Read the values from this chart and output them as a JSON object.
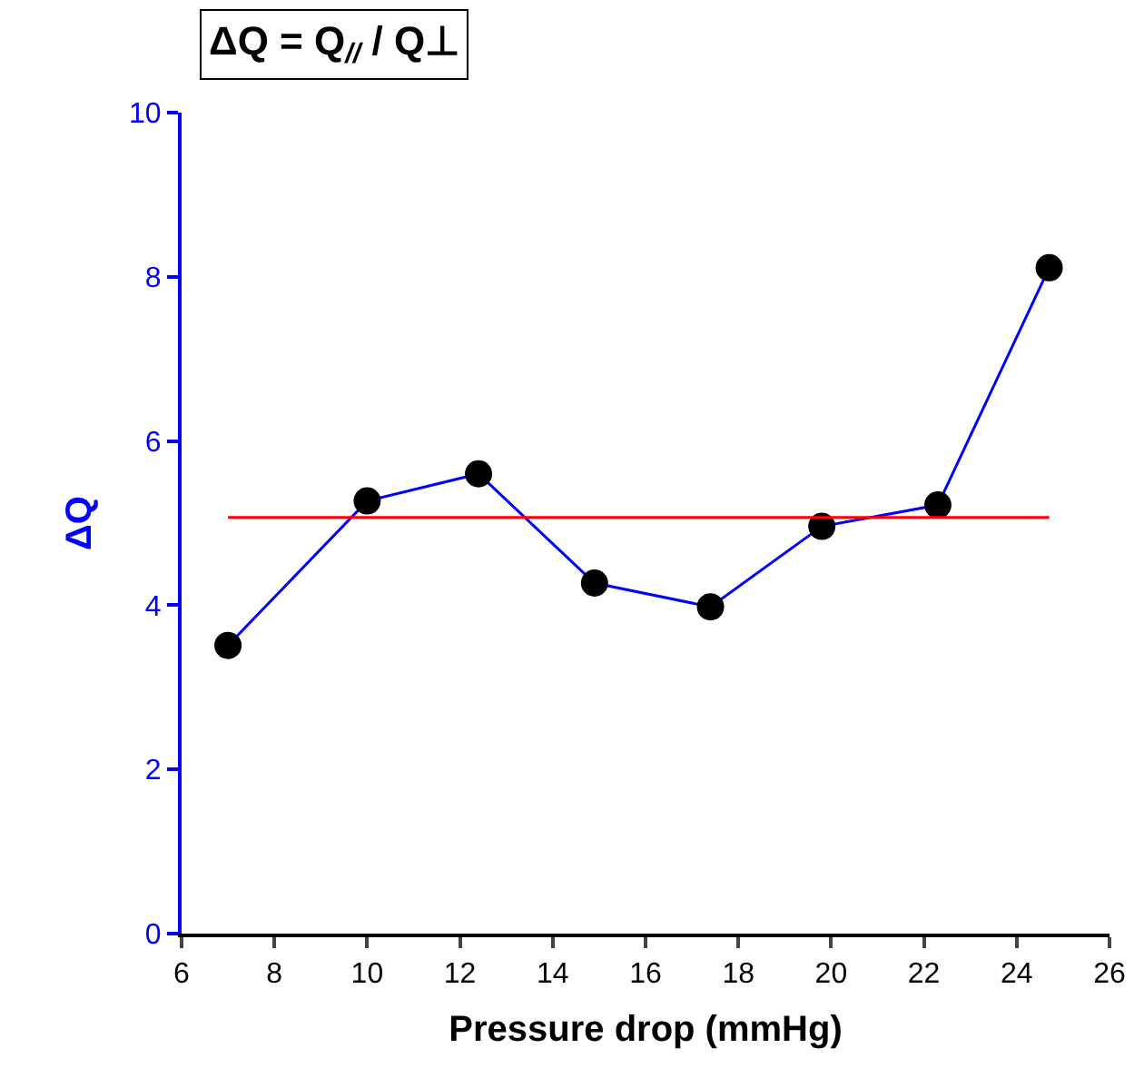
{
  "chart_data": {
    "type": "line",
    "title": "ΔQ = Q$_{//}$ / Q⊥",
    "xlabel": "Pressure drop (mmHg)",
    "ylabel": "ΔQ",
    "x": [
      7.0,
      10.0,
      12.4,
      14.9,
      17.4,
      19.8,
      22.3,
      24.7
    ],
    "series": [
      {
        "color": "#0000ff",
        "colors": [
          "#000000",
          "#000000",
          "#000000",
          "#000000",
          "#000000",
          "#000000",
          "#000000",
          "#000000"
        ],
        "values": [
          3.51,
          5.27,
          5.6,
          4.27,
          3.98,
          4.96,
          5.22,
          8.11
        ]
      }
    ],
    "xlim": [
      6,
      26
    ],
    "xticks": [
      6,
      8,
      10,
      12,
      14,
      16,
      18,
      20,
      22,
      24,
      26
    ],
    "ylim": [
      0,
      10
    ],
    "yticks": [
      0,
      2,
      4,
      6,
      8,
      10
    ],
    "ref_lines": [
      {
        "axis": "y",
        "value": 5.07,
        "color": "#ff0000"
      }
    ],
    "marker": "circle",
    "line_style": "solid"
  }
}
